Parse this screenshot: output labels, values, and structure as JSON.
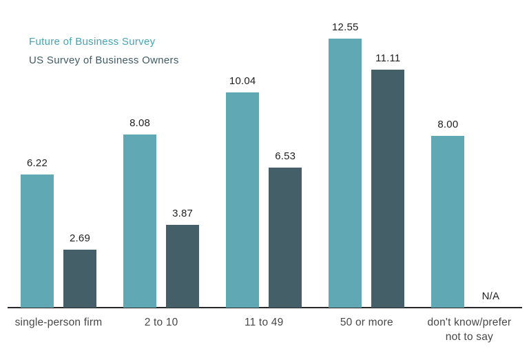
{
  "chart_data": {
    "type": "bar",
    "title": "",
    "categories": [
      "single-person firm",
      "2 to 10",
      "11 to 49",
      "50 or more",
      "don't know/prefer\nnot to say"
    ],
    "series": [
      {
        "name": "Future of Business Survey",
        "color": "#60a9b4",
        "legend_text_color": "#45a4b4",
        "values": [
          6.22,
          8.08,
          10.04,
          12.55,
          8.0
        ],
        "labels": [
          "6.22",
          "8.08",
          "10.04",
          "12.55",
          "8.00"
        ]
      },
      {
        "name": "US Survey of Business Owners",
        "color": "#455f68",
        "legend_text_color": "#3f5a63",
        "values": [
          2.69,
          3.87,
          6.53,
          11.11,
          null
        ],
        "labels": [
          "2.69",
          "3.87",
          "6.53",
          "11.11",
          "N/A"
        ]
      }
    ],
    "missing_value_text": "N/A",
    "value_label_color": "#1f1f1f",
    "category_label_color": "#474747",
    "axis_line_color": "#262626",
    "background_color": "#ffffff",
    "legend_position": "top-left",
    "y_axis_visible": false,
    "x_axis_labels_visible": true,
    "grid": false,
    "ylim": [
      0,
      13
    ],
    "data_labels": "above-bars"
  }
}
